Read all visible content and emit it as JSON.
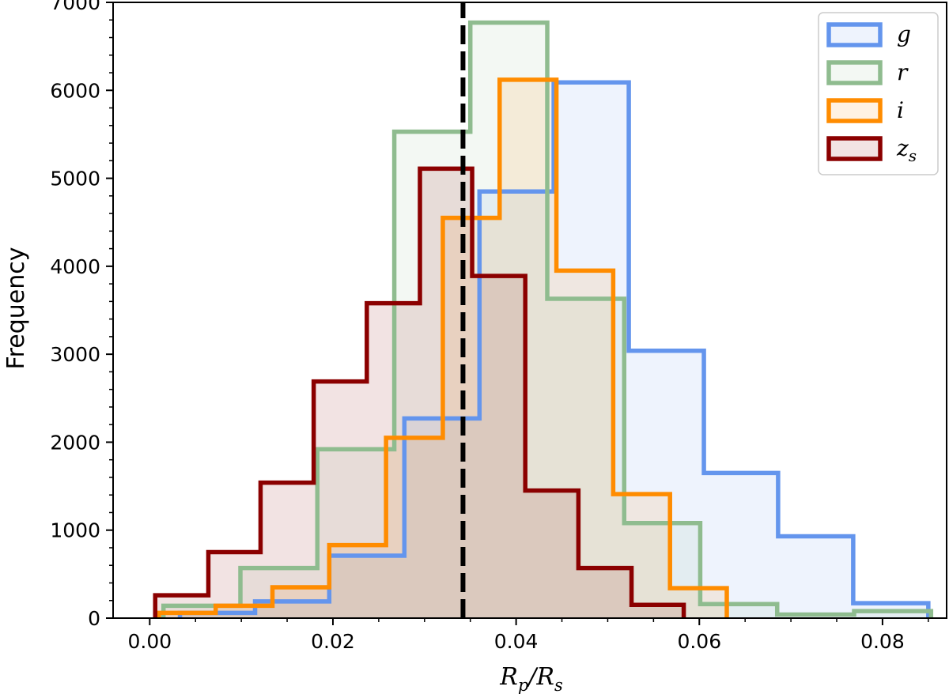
{
  "chart_data": {
    "type": "histogram",
    "xlabel_main": "R",
    "xlabel_sub1": "p",
    "xlabel_slash": "/R",
    "xlabel_sub2": "s",
    "ylabel": "Frequency",
    "xlim": [
      -0.004,
      0.087
    ],
    "ylim": [
      0,
      7000
    ],
    "x_ticks": [
      0.0,
      0.02,
      0.04,
      0.06,
      0.08
    ],
    "x_tick_labels": [
      "0.00",
      "0.02",
      "0.04",
      "0.06",
      "0.08"
    ],
    "y_ticks": [
      0,
      1000,
      2000,
      3000,
      4000,
      5000,
      6000,
      7000
    ],
    "y_tick_labels": [
      "0",
      "1000",
      "2000",
      "3000",
      "4000",
      "5000",
      "6000",
      "7000"
    ],
    "reference_line_x": 0.0342,
    "legend_position": "top-right",
    "series": [
      {
        "name": "g",
        "sub": "",
        "color": "#6495ed",
        "bin_edges": [
          0.0033,
          0.0115,
          0.0196,
          0.0278,
          0.036,
          0.0441,
          0.0523,
          0.0605,
          0.0686,
          0.0768,
          0.085
        ],
        "counts": [
          60,
          190,
          710,
          2270,
          4850,
          6090,
          3040,
          1650,
          930,
          170
        ]
      },
      {
        "name": "r",
        "sub": "",
        "color": "#8fbc8f",
        "bin_edges": [
          0.0015,
          0.0099,
          0.0183,
          0.0267,
          0.035,
          0.0434,
          0.0518,
          0.0601,
          0.0685,
          0.0769,
          0.0853
        ],
        "counts": [
          140,
          570,
          1920,
          5530,
          6770,
          3630,
          1080,
          160,
          40,
          80
        ]
      },
      {
        "name": "i",
        "sub": "",
        "color": "#ff8c00",
        "bin_edges": [
          0.001,
          0.0072,
          0.0134,
          0.0196,
          0.0258,
          0.032,
          0.0382,
          0.0444,
          0.0506,
          0.0568,
          0.063
        ],
        "counts": [
          60,
          140,
          350,
          830,
          2050,
          4550,
          6120,
          3950,
          1410,
          340
        ]
      },
      {
        "name": "z",
        "sub": "s",
        "color": "#8b0000",
        "bin_edges": [
          0.0006,
          0.0064,
          0.0121,
          0.0179,
          0.0237,
          0.0295,
          0.0352,
          0.041,
          0.0468,
          0.0526,
          0.0583
        ],
        "counts": [
          260,
          750,
          1540,
          2690,
          3580,
          5110,
          3890,
          1450,
          570,
          150
        ]
      }
    ]
  }
}
